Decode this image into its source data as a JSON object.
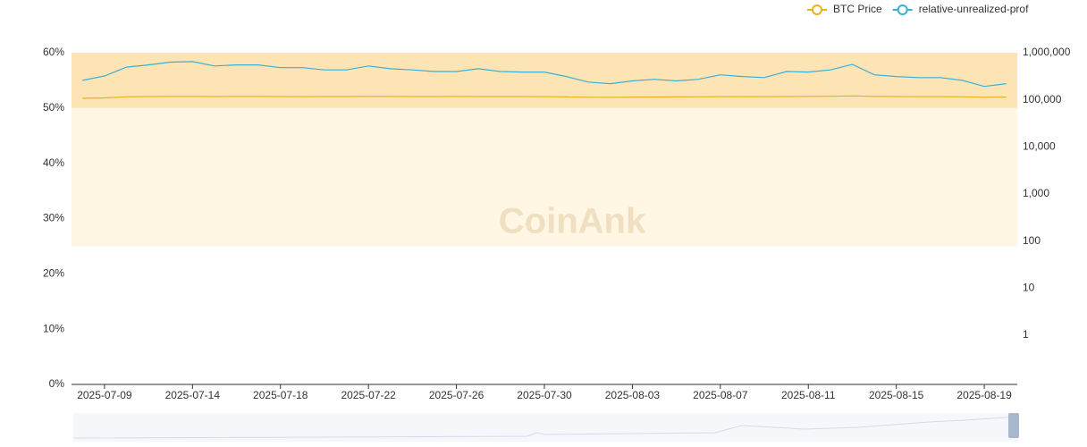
{
  "chart_data": {
    "type": "line",
    "watermark": "CoinAnk",
    "categories": [
      null,
      "2025-07-09",
      null,
      null,
      null,
      "2025-07-14",
      null,
      null,
      null,
      "2025-07-18",
      null,
      null,
      null,
      "2025-07-22",
      null,
      null,
      null,
      "2025-07-26",
      null,
      null,
      null,
      "2025-07-30",
      null,
      null,
      null,
      "2025-08-03",
      null,
      null,
      null,
      "2025-08-07",
      null,
      null,
      null,
      "2025-08-11",
      null,
      null,
      null,
      "2025-08-15",
      null,
      null,
      null,
      "2025-08-19",
      null
    ],
    "series": [
      {
        "name": "BTC Price",
        "color": "#e6b31e",
        "axis": "y2",
        "values": [
          108000,
          110000,
          116000,
          117500,
          118000,
          118000,
          117500,
          118000,
          118000,
          117500,
          117000,
          117500,
          117500,
          118500,
          118000,
          117500,
          117500,
          118000,
          117500,
          117500,
          117500,
          117000,
          115500,
          114000,
          113500,
          114500,
          115000,
          115500,
          116000,
          117000,
          116500,
          117000,
          117500,
          118500,
          119000,
          121000,
          118500,
          117500,
          117000,
          117000,
          116000,
          114000,
          114500
        ]
      },
      {
        "name": "relative-unrealized-prof",
        "color": "#3ab0d8",
        "values": [
          55.0,
          55.8,
          57.4,
          57.8,
          58.3,
          58.4,
          57.6,
          57.8,
          57.8,
          57.3,
          57.3,
          56.9,
          56.9,
          57.6,
          57.1,
          56.9,
          56.6,
          56.6,
          57.1,
          56.6,
          56.5,
          56.5,
          55.7,
          54.7,
          54.4,
          54.9,
          55.2,
          54.9,
          55.2,
          56.0,
          55.7,
          55.5,
          56.6,
          56.5,
          56.9,
          57.9,
          56.0,
          55.7,
          55.5,
          55.5,
          55.0,
          53.9,
          54.4
        ]
      }
    ],
    "ylim": [
      0,
      60
    ],
    "yticks": [
      {
        "value": 0,
        "label": "0%"
      },
      {
        "value": 10,
        "label": "10%"
      },
      {
        "value": 20,
        "label": "20%"
      },
      {
        "value": 30,
        "label": "30%"
      },
      {
        "value": 40,
        "label": "40%"
      },
      {
        "value": 50,
        "label": "50%"
      },
      {
        "value": 60,
        "label": "60%"
      }
    ],
    "y2lim": [
      0.09,
      1000000
    ],
    "y2scale": "log",
    "y2ticks": [
      1,
      10,
      100,
      {
        "value": 1000,
        "label": "1,000"
      },
      {
        "value": 10000,
        "label": "10,000"
      },
      {
        "value": 100000,
        "label": "100,000"
      },
      {
        "value": 1000000,
        "label": "1,000,000"
      }
    ],
    "bands": [
      {
        "from": 50,
        "to": 60,
        "color": "#fde4b4"
      },
      {
        "from": 25,
        "to": 50,
        "color": "#fff6e3"
      }
    ],
    "legend": "top-right"
  }
}
